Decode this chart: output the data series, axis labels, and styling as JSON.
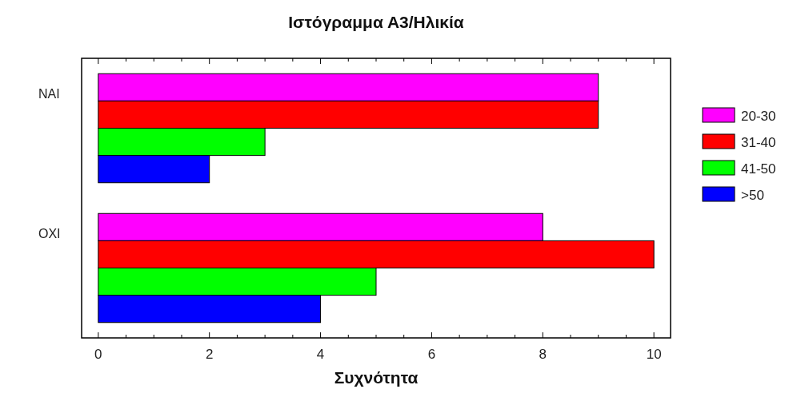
{
  "chart_data": {
    "type": "bar",
    "orientation": "horizontal",
    "title": "Ιστόγραμμα Α3/Ηλικία",
    "xlabel": "Συχνότητα",
    "categories": [
      "ΝΑΙ",
      "ΟΧΙ"
    ],
    "series": [
      {
        "name": "20-30",
        "color": "#ff00ff",
        "values": [
          9,
          8
        ]
      },
      {
        "name": "31-40",
        "color": "#ff0000",
        "values": [
          9,
          10
        ]
      },
      {
        "name": "41-50",
        "color": "#00ff00",
        "values": [
          3,
          5
        ]
      },
      {
        "name": ">50",
        "color": "#0000ff",
        "values": [
          2,
          4
        ]
      }
    ],
    "xlim": [
      -0.3,
      10.3
    ],
    "xticks": [
      0,
      {
        "value": 0.5,
        "label": null
      },
      {
        "value": 1,
        "label": null
      },
      {
        "value": 1.5,
        "label": null
      },
      2,
      {
        "value": 2.5,
        "label": null
      },
      {
        "value": 3,
        "label": null
      },
      {
        "value": 3.5,
        "label": null
      },
      4,
      {
        "value": 4.5,
        "label": null
      },
      {
        "value": 5,
        "label": null
      },
      {
        "value": 5.5,
        "label": null
      },
      6,
      {
        "value": 6.5,
        "label": null
      },
      {
        "value": 7,
        "label": null
      },
      {
        "value": 7.5,
        "label": null
      },
      8,
      {
        "value": 8.5,
        "label": null
      },
      {
        "value": 9,
        "label": null
      },
      {
        "value": 9.5,
        "label": null
      },
      10
    ],
    "grid": false,
    "legend": "right"
  }
}
